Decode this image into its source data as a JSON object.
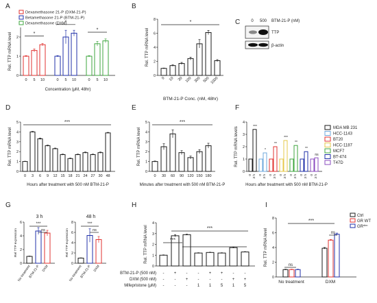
{
  "colors": {
    "black": "#1a1a1a",
    "red": "#e0312f",
    "blue": "#1f2fa8",
    "green": "#3ea63e",
    "lightblue": "#6fa8dc",
    "yellow": "#e6c84a",
    "orange": "#e8903a",
    "purple": "#8a4bbf"
  },
  "chart_data": [
    {
      "panel": "A",
      "type": "bar",
      "ylabel": "Rel. TTP mRNA level",
      "xlabel": "Concentration (μM, 48hr)",
      "ylim": [
        0,
        2.5
      ],
      "yticks": [
        0,
        1,
        2
      ],
      "groups": [
        {
          "name": "Dexamethasone 21-P (DXM-21-P)",
          "color": "red",
          "categories": [
            "0",
            "5",
            "10"
          ],
          "values": [
            1.0,
            1.3,
            1.6
          ],
          "errors": [
            0.03,
            0.08,
            0.06
          ]
        },
        {
          "name": "Betamethasone 21-P (BTM-21-P)",
          "color": "blue",
          "categories": [
            "0",
            "5",
            "10"
          ],
          "values": [
            1.0,
            2.0,
            2.2
          ],
          "errors": [
            0.03,
            0.35,
            0.15
          ]
        },
        {
          "name": "Dexamethasone (DXM)",
          "color": "green",
          "categories": [
            "0",
            "5",
            "10"
          ],
          "values": [
            1.0,
            1.65,
            1.8
          ],
          "errors": [
            0.03,
            0.12,
            0.1
          ]
        }
      ],
      "significance": [
        "*",
        "*",
        "*"
      ]
    },
    {
      "panel": "B",
      "type": "bar",
      "ylabel": "Rel. TTP mRNA level",
      "xlabel": "BTM-21-P Conc. (nM, 48hr)",
      "ylim": [
        0,
        8
      ],
      "yticks": [
        0,
        2,
        4,
        6,
        8
      ],
      "categories": [
        "0",
        "10",
        "30",
        "100",
        "300",
        "500",
        "1000"
      ],
      "values": [
        1.0,
        1.4,
        1.7,
        2.4,
        4.5,
        6.1,
        2.1
      ],
      "errors": [
        0.05,
        0.1,
        0.15,
        0.2,
        0.6,
        0.3,
        0.15
      ],
      "significance": "*"
    },
    {
      "panel": "C",
      "type": "blot",
      "lanes": [
        "0",
        "500"
      ],
      "treatment": "BTM-21-P (nM)",
      "bands": [
        "TTP",
        "β-actin"
      ]
    },
    {
      "panel": "D",
      "type": "bar",
      "ylabel": "Rel. TTP mRNA level",
      "xlabel": "Hours after treatment with 500 nM BTM-21-P",
      "ylim": [
        0,
        5
      ],
      "yticks": [
        0,
        1,
        2,
        3,
        4,
        5
      ],
      "categories": [
        "0",
        "3",
        "6",
        "9",
        "12",
        "15",
        "18",
        "21",
        "24",
        "27",
        "30",
        "48"
      ],
      "values": [
        1.0,
        4.0,
        3.3,
        2.6,
        2.3,
        1.7,
        1.3,
        1.7,
        1.9,
        1.7,
        1.9,
        3.9
      ],
      "errors": [
        0.03,
        0.05,
        0.08,
        0.06,
        0.06,
        0.05,
        0.05,
        0.05,
        0.06,
        0.05,
        0.06,
        0.05
      ],
      "significance": "***"
    },
    {
      "panel": "E",
      "type": "bar",
      "ylabel": "Rel. TTP mRNA level",
      "xlabel": "Minutes after treatment with 500 nM BTM-21-P",
      "ylim": [
        0,
        5
      ],
      "yticks": [
        0,
        1,
        2,
        3,
        4,
        5
      ],
      "categories": [
        "0",
        "30",
        "60",
        "90",
        "120",
        "150",
        "180"
      ],
      "values": [
        1.0,
        2.5,
        3.8,
        1.9,
        1.4,
        2.0,
        2.6
      ],
      "errors": [
        0.05,
        0.3,
        0.4,
        0.2,
        0.15,
        0.2,
        0.25
      ],
      "significance": "***"
    },
    {
      "panel": "F",
      "type": "bar",
      "ylabel": "Rel. TTP mRNA levels",
      "xlabel": "Hours after treatment with 500 nM BTM-21-P",
      "ylim": [
        0,
        4
      ],
      "yticks": [
        0,
        1,
        2,
        3,
        4
      ],
      "time_labels": [
        "0",
        "3 h"
      ],
      "series": [
        {
          "name": "MDA MB 231",
          "color": "black",
          "values": [
            1.0,
            3.4
          ],
          "significance": "***"
        },
        {
          "name": "HCC-1143",
          "color": "lightblue",
          "values": [
            1.0,
            1.5
          ],
          "significance": "*"
        },
        {
          "name": "BT20",
          "color": "red",
          "values": [
            1.0,
            2.0
          ],
          "significance": "**"
        },
        {
          "name": "HCC-1187",
          "color": "yellow",
          "values": [
            1.0,
            2.5
          ],
          "significance": "***"
        },
        {
          "name": "MCF7",
          "color": "green",
          "values": [
            1.0,
            2.1
          ],
          "significance": "**"
        },
        {
          "name": "BT-474",
          "color": "blue",
          "values": [
            1.0,
            1.6
          ],
          "significance": "**"
        },
        {
          "name": "T47D",
          "color": "purple",
          "values": [
            1.0,
            1.1
          ],
          "significance": "ns"
        }
      ]
    },
    {
      "panel": "G",
      "type": "bar",
      "subplots": [
        {
          "title": "3 h",
          "ylabel": "Rel TTP expression",
          "ylim": [
            0,
            6
          ],
          "yticks": [
            0,
            2,
            4,
            6
          ],
          "categories": [
            "No treatment",
            "BTM-21-P",
            "DXM"
          ],
          "values": [
            1.0,
            4.7,
            4.4
          ],
          "errors": [
            0.05,
            0.5,
            0.4
          ],
          "colors": [
            "black",
            "blue",
            "red"
          ],
          "significance": [
            "***",
            "ns"
          ]
        },
        {
          "title": "48 h",
          "ylabel": "Rel TTP expression",
          "ylim": [
            0,
            8
          ],
          "yticks": [
            0,
            2,
            4,
            6,
            8
          ],
          "categories": [
            "No treatment",
            "BTM-21-P",
            "DXM"
          ],
          "values": [
            1.0,
            5.4,
            4.6
          ],
          "errors": [
            0.05,
            1.3,
            0.6
          ],
          "colors": [
            "black",
            "blue",
            "red"
          ],
          "significance": [
            "***",
            "ns"
          ]
        }
      ]
    },
    {
      "panel": "H",
      "type": "bar",
      "ylabel": "Rel. TTP mRNA level",
      "ylim": [
        0,
        4
      ],
      "yticks": [
        0,
        1,
        2,
        3,
        4
      ],
      "values": [
        1.0,
        2.8,
        2.9,
        1.2,
        1.25,
        1.2,
        1.7,
        1.3
      ],
      "errors": [
        0.03,
        0.1,
        0.05,
        0.03,
        0.03,
        0.03,
        0.05,
        0.03
      ],
      "row_labels": [
        "BTM-21-P (500 nM)",
        "DXM (500 nM)",
        "Mifepristone (μM)"
      ],
      "rows": [
        [
          "-",
          "+",
          "-",
          "-",
          "+",
          "+",
          "-",
          "-"
        ],
        [
          "-",
          "-",
          "+",
          "-",
          "-",
          "-",
          "+",
          "+"
        ],
        [
          "-",
          "-",
          "-",
          "1",
          "1",
          "5",
          "1",
          "5"
        ]
      ],
      "significance": [
        "***",
        "***"
      ]
    },
    {
      "panel": "I",
      "type": "bar",
      "ylabel": "Rel. TTP mRNA level",
      "ylim": [
        0,
        8
      ],
      "yticks": [
        0,
        2,
        4,
        6,
        8
      ],
      "categories": [
        "No treatment",
        "DXM"
      ],
      "series": [
        {
          "name": "Ctrl",
          "color": "black",
          "values": [
            1.0,
            3.9
          ]
        },
        {
          "name": "GR WT",
          "color": "red",
          "values": [
            1.0,
            5.0
          ]
        },
        {
          "name": "GR",
          "sup": "dim",
          "color": "blue",
          "values": [
            1.0,
            5.8
          ]
        }
      ],
      "errors": [
        [
          0.05,
          0.05,
          0.05
        ],
        [
          0.1,
          0.08,
          0.15
        ]
      ],
      "significance": [
        "ns",
        "ns",
        "***"
      ]
    }
  ],
  "panels": [
    "A",
    "B",
    "C",
    "D",
    "E",
    "F",
    "G",
    "H",
    "I"
  ]
}
